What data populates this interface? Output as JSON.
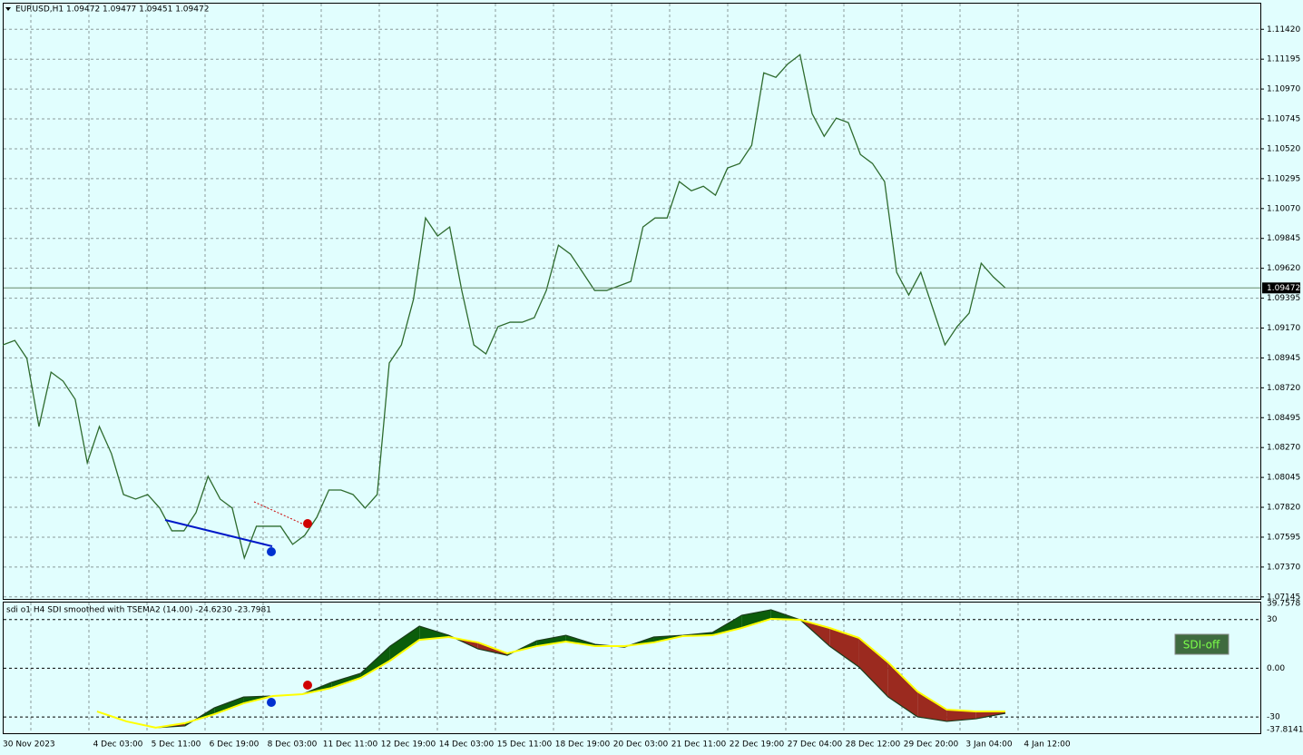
{
  "chart_data": [
    {
      "type": "line",
      "title": "EURUSD,H1  1.09472 1.09477 1.09451 1.09472",
      "x_labels": [
        "30 Nov 2023",
        "4 Dec 03:00",
        "5 Dec 11:00",
        "6 Dec 19:00",
        "8 Dec 03:00",
        "11 Dec 11:00",
        "12 Dec 19:00",
        "14 Dec 03:00",
        "15 Dec 11:00",
        "18 Dec 19:00",
        "20 Dec 03:00",
        "21 Dec 11:00",
        "22 Dec 19:00",
        "27 Dec 04:00",
        "28 Dec 12:00",
        "29 Dec 20:00",
        "3 Jan 04:00",
        "4 Jan 12:00"
      ],
      "series": [
        {
          "name": "EURUSD",
          "color": "#2e6b2e",
          "values": [
            1.09043,
            1.09077,
            1.08941,
            1.08428,
            1.08838,
            1.0877,
            1.08633,
            1.08155,
            1.08428,
            1.08224,
            1.07916,
            1.07882,
            1.07916,
            1.07814,
            1.07643,
            1.07643,
            1.0778,
            1.08053,
            1.07882,
            1.07814,
            1.07438,
            1.07677,
            1.07677,
            1.07677,
            1.07541,
            1.07609,
            1.07745,
            1.0795,
            1.0795,
            1.07916,
            1.07814,
            1.07916,
            1.08907,
            1.09043,
            1.09385,
            1.09999,
            1.09863,
            1.09931,
            1.09453,
            1.09043,
            1.08975,
            1.0918,
            1.09214,
            1.09214,
            1.09248,
            1.09453,
            1.09794,
            1.09726,
            1.0959,
            1.09453,
            1.09453,
            1.09487,
            1.09521,
            1.09931,
            1.09999,
            1.09999,
            1.10273,
            1.10204,
            1.10238,
            1.1017,
            1.10375,
            1.10409,
            1.10546,
            1.11092,
            1.11058,
            1.1116,
            1.11229,
            1.10785,
            1.10614,
            1.10751,
            1.10717,
            1.10477,
            1.10409,
            1.10273,
            1.0959,
            1.09419,
            1.0959,
            1.09316,
            1.09043,
            1.0918,
            1.09282,
            1.09658,
            1.09555,
            1.09472
          ]
        }
      ],
      "last_price": 1.09472,
      "ylim": [
        1.0713,
        1.1162
      ],
      "yticks": [
        {
          "value": 1.1142,
          "label": "1.11420"
        },
        1.11195,
        {
          "value": 1.1097,
          "label": "1.10970"
        },
        1.10745,
        {
          "value": 1.1052,
          "label": "1.10520"
        },
        1.10295,
        {
          "value": 1.1007,
          "label": "1.10070"
        },
        1.09845,
        {
          "value": 1.0962,
          "label": "1.09620"
        },
        1.09395,
        {
          "value": 1.0917,
          "label": "1.09170"
        },
        1.08945,
        {
          "value": 1.0872,
          "label": "1.08720"
        },
        1.08495,
        {
          "value": 1.0827,
          "label": "1.08270"
        },
        1.08045,
        {
          "value": 1.0782,
          "label": "1.07820"
        },
        1.07595,
        {
          "value": 1.0737,
          "label": "1.07370"
        },
        1.07145
      ],
      "grid": true
    },
    {
      "type": "band",
      "title": "sdi o1 H4 SDI smoothed with TSEMA2 (14.00) -24.6230 -23.7981",
      "series": [
        {
          "name": "SDI",
          "color": "#1a3a1a",
          "values": [
            -26.6,
            -32.7,
            -36.6,
            -35.5,
            -24.4,
            -17.7,
            -17.1,
            -16.0,
            -8.7,
            -3.1,
            13.6,
            25.9,
            20.3,
            11.9,
            8.0,
            16.9,
            20.3,
            14.7,
            13.0,
            19.2,
            20.3,
            22.0,
            32.6,
            36.0,
            29.8,
            13.6,
            0.8,
            -17.7,
            -29.9,
            -32.7,
            -31.1,
            -27.7
          ]
        },
        {
          "name": "TSEMA2",
          "color": "#ffff00",
          "values": [
            -26.6,
            -32.7,
            -36.6,
            -33.8,
            -28.3,
            -21.6,
            -17.1,
            -16.0,
            -12.1,
            -5.9,
            4.7,
            17.5,
            19.2,
            15.9,
            9.2,
            13.6,
            16.4,
            13.6,
            13.6,
            15.9,
            19.8,
            20.3,
            24.8,
            30.4,
            29.8,
            24.8,
            18.7,
            3.6,
            -14.3,
            -25.5,
            -26.6,
            -26.6
          ]
        }
      ],
      "up_color": "#0b5d0b",
      "down_color": "#9b2a1f",
      "ylim": [
        -40,
        41
      ],
      "yticks": [
        39.7578,
        30,
        {
          "value": 0,
          "label": "0.00"
        },
        -30,
        -37.8141
      ],
      "dashed_lines": [
        30,
        0,
        -30
      ]
    }
  ],
  "button": "SDI-off"
}
